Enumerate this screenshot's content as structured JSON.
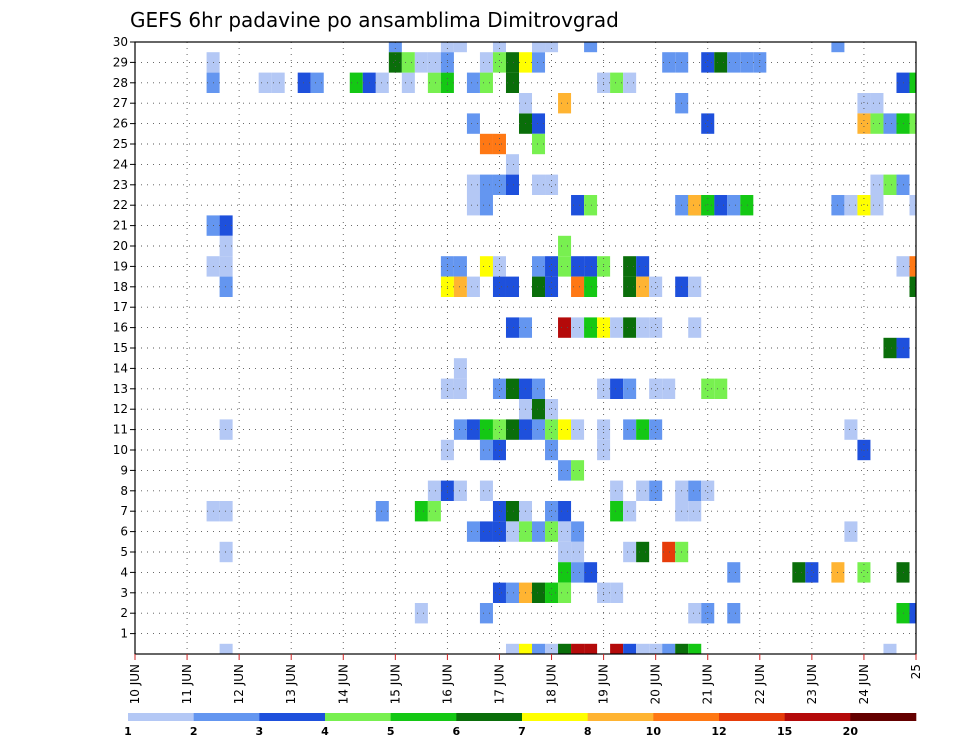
{
  "chart_data": {
    "type": "heatmap",
    "title": "GEFS 6hr padavine po ansamblima Dimitrovgrad",
    "y_ticks": [
      "1",
      "2",
      "3",
      "4",
      "5",
      "6",
      "7",
      "8",
      "9",
      "10",
      "11",
      "12",
      "13",
      "14",
      "15",
      "16",
      "17",
      "18",
      "19",
      "20",
      "21",
      "22",
      "23",
      "24",
      "25",
      "26",
      "27",
      "28",
      "29",
      "30"
    ],
    "x_ticks": [
      "10 JUN",
      "11 JUN",
      "12 JUN",
      "13 JUN",
      "14 JUN",
      "15 JUN",
      "16 JUN",
      "17 JUN",
      "18 JUN",
      "19 JUN",
      "20 JUN",
      "21 JUN",
      "22 JUN",
      "23 JUN",
      "24 JUN",
      "25"
    ],
    "x_range": [
      0,
      60
    ],
    "y_range": [
      0,
      30
    ],
    "grid": true,
    "colorbar": {
      "labels": [
        "1",
        "2",
        "3",
        "4",
        "5",
        "6",
        "7",
        "8",
        "10",
        "12",
        "15",
        "20"
      ],
      "colors": [
        "#b4c8f5",
        "#6496f0",
        "#1e50dc",
        "#78f050",
        "#14c814",
        "#0a6e0a",
        "#ffff00",
        "#ffb432",
        "#ff7814",
        "#e63c0a",
        "#b40a0a",
        "#640000"
      ]
    },
    "cells": [
      [
        28,
        30,
        1
      ],
      [
        27,
        29,
        1
      ],
      [
        28,
        29,
        4
      ],
      [
        29,
        29,
        6
      ],
      [
        30,
        29,
        7
      ],
      [
        31,
        29,
        2
      ],
      [
        41,
        29,
        2
      ],
      [
        42,
        29,
        2
      ],
      [
        44,
        29,
        3
      ],
      [
        45,
        29,
        6
      ],
      [
        46,
        29,
        2
      ],
      [
        47,
        29,
        2
      ],
      [
        48,
        29,
        2
      ],
      [
        6,
        29,
        1
      ],
      [
        29,
        28,
        6
      ],
      [
        27,
        28,
        4
      ],
      [
        26,
        28,
        2
      ],
      [
        23,
        28,
        4
      ],
      [
        24,
        28,
        5
      ],
      [
        21,
        28,
        1
      ],
      [
        10,
        28,
        1
      ],
      [
        11,
        28,
        1
      ],
      [
        13,
        28,
        3
      ],
      [
        14,
        28,
        2
      ],
      [
        17,
        28,
        5
      ],
      [
        18,
        28,
        3
      ],
      [
        19,
        28,
        1
      ],
      [
        36,
        28,
        1
      ],
      [
        6,
        28,
        2
      ],
      [
        59,
        28,
        3
      ],
      [
        60,
        28,
        5
      ],
      [
        54,
        30,
        2
      ],
      [
        37,
        28,
        4
      ],
      [
        38,
        28,
        1
      ],
      [
        35,
        30,
        2
      ],
      [
        20,
        30,
        2
      ],
      [
        24,
        30,
        1
      ],
      [
        25,
        30,
        1
      ],
      [
        20,
        29,
        6
      ],
      [
        21,
        29,
        4
      ],
      [
        22,
        29,
        1
      ],
      [
        23,
        29,
        1
      ],
      [
        24,
        29,
        2
      ],
      [
        31,
        30,
        1
      ],
      [
        32,
        30,
        1
      ],
      [
        30,
        26,
        6
      ],
      [
        31,
        26,
        3
      ],
      [
        31,
        25,
        4
      ],
      [
        27,
        25,
        9
      ],
      [
        28,
        25,
        9
      ],
      [
        29,
        24,
        1
      ],
      [
        26,
        26,
        2
      ],
      [
        30,
        27,
        1
      ],
      [
        33,
        27,
        8
      ],
      [
        42,
        27,
        2
      ],
      [
        56,
        27,
        1
      ],
      [
        57,
        27,
        1
      ],
      [
        44,
        26,
        3
      ],
      [
        56,
        26,
        8
      ],
      [
        57,
        26,
        4
      ],
      [
        58,
        26,
        2
      ],
      [
        59,
        26,
        5
      ],
      [
        60,
        26,
        4
      ],
      [
        26,
        23,
        1
      ],
      [
        27,
        23,
        2
      ],
      [
        28,
        23,
        2
      ],
      [
        29,
        23,
        3
      ],
      [
        31,
        23,
        1
      ],
      [
        32,
        23,
        1
      ],
      [
        57,
        23,
        1
      ],
      [
        58,
        23,
        4
      ],
      [
        59,
        23,
        2
      ],
      [
        26,
        22,
        1
      ],
      [
        27,
        22,
        2
      ],
      [
        34,
        22,
        3
      ],
      [
        35,
        22,
        4
      ],
      [
        42,
        22,
        2
      ],
      [
        43,
        22,
        5
      ],
      [
        44,
        22,
        3
      ],
      [
        45,
        22,
        3
      ],
      [
        46,
        22,
        2
      ],
      [
        47,
        22,
        5
      ],
      [
        43,
        22,
        8
      ],
      [
        44,
        22,
        5
      ],
      [
        54,
        22,
        2
      ],
      [
        55,
        22,
        1
      ],
      [
        56,
        22,
        7
      ],
      [
        57,
        22,
        1
      ],
      [
        60,
        22,
        1
      ],
      [
        6,
        21,
        2
      ],
      [
        7,
        21,
        3
      ],
      [
        7,
        20,
        1
      ],
      [
        33,
        20,
        4
      ],
      [
        6,
        19,
        1
      ],
      [
        7,
        19,
        1
      ],
      [
        24,
        19,
        2
      ],
      [
        25,
        19,
        2
      ],
      [
        27,
        19,
        7
      ],
      [
        28,
        19,
        1
      ],
      [
        31,
        19,
        2
      ],
      [
        32,
        19,
        3
      ],
      [
        33,
        19,
        4
      ],
      [
        34,
        19,
        3
      ],
      [
        35,
        19,
        3
      ],
      [
        36,
        19,
        4
      ],
      [
        38,
        19,
        6
      ],
      [
        39,
        19,
        3
      ],
      [
        59,
        19,
        1
      ],
      [
        60,
        19,
        9
      ],
      [
        7,
        18,
        2
      ],
      [
        24,
        18,
        7
      ],
      [
        25,
        18,
        8
      ],
      [
        26,
        18,
        1
      ],
      [
        28,
        18,
        3
      ],
      [
        29,
        18,
        3
      ],
      [
        31,
        18,
        6
      ],
      [
        32,
        18,
        3
      ],
      [
        34,
        18,
        9
      ],
      [
        35,
        18,
        5
      ],
      [
        38,
        18,
        6
      ],
      [
        39,
        18,
        8
      ],
      [
        40,
        18,
        1
      ],
      [
        42,
        18,
        3
      ],
      [
        43,
        18,
        1
      ],
      [
        60,
        18,
        6
      ],
      [
        29,
        16,
        3
      ],
      [
        30,
        16,
        2
      ],
      [
        33,
        16,
        11
      ],
      [
        34,
        16,
        1
      ],
      [
        35,
        16,
        5
      ],
      [
        36,
        16,
        7
      ],
      [
        37,
        16,
        1
      ],
      [
        38,
        16,
        6
      ],
      [
        39,
        16,
        1
      ],
      [
        40,
        16,
        1
      ],
      [
        43,
        16,
        1
      ],
      [
        58,
        15,
        6
      ],
      [
        59,
        15,
        3
      ],
      [
        25,
        14,
        1
      ],
      [
        24,
        13,
        1
      ],
      [
        25,
        13,
        1
      ],
      [
        28,
        13,
        2
      ],
      [
        29,
        13,
        6
      ],
      [
        30,
        13,
        3
      ],
      [
        31,
        13,
        2
      ],
      [
        36,
        13,
        1
      ],
      [
        37,
        13,
        3
      ],
      [
        38,
        13,
        2
      ],
      [
        40,
        13,
        1
      ],
      [
        41,
        13,
        1
      ],
      [
        44,
        13,
        4
      ],
      [
        45,
        13,
        4
      ],
      [
        30,
        12,
        1
      ],
      [
        31,
        12,
        6
      ],
      [
        32,
        12,
        1
      ],
      [
        7,
        11,
        1
      ],
      [
        25,
        11,
        2
      ],
      [
        26,
        11,
        3
      ],
      [
        27,
        11,
        5
      ],
      [
        28,
        11,
        4
      ],
      [
        29,
        11,
        6
      ],
      [
        30,
        11,
        3
      ],
      [
        31,
        11,
        2
      ],
      [
        32,
        11,
        4
      ],
      [
        33,
        11,
        7
      ],
      [
        34,
        11,
        1
      ],
      [
        36,
        11,
        1
      ],
      [
        38,
        11,
        2
      ],
      [
        39,
        11,
        5
      ],
      [
        40,
        11,
        2
      ],
      [
        55,
        11,
        1
      ],
      [
        24,
        10,
        1
      ],
      [
        27,
        10,
        2
      ],
      [
        28,
        10,
        3
      ],
      [
        32,
        10,
        2
      ],
      [
        36,
        10,
        1
      ],
      [
        56,
        10,
        3
      ],
      [
        33,
        9,
        2
      ],
      [
        34,
        9,
        4
      ],
      [
        23,
        8,
        1
      ],
      [
        24,
        8,
        3
      ],
      [
        25,
        8,
        1
      ],
      [
        27,
        8,
        1
      ],
      [
        37,
        8,
        1
      ],
      [
        39,
        8,
        1
      ],
      [
        40,
        8,
        2
      ],
      [
        42,
        8,
        1
      ],
      [
        43,
        8,
        2
      ],
      [
        44,
        8,
        1
      ],
      [
        6,
        7,
        1
      ],
      [
        7,
        7,
        1
      ],
      [
        19,
        7,
        2
      ],
      [
        22,
        7,
        5
      ],
      [
        23,
        7,
        4
      ],
      [
        28,
        7,
        3
      ],
      [
        29,
        7,
        6
      ],
      [
        30,
        7,
        1
      ],
      [
        32,
        7,
        2
      ],
      [
        33,
        7,
        3
      ],
      [
        37,
        7,
        5
      ],
      [
        38,
        7,
        1
      ],
      [
        42,
        7,
        1
      ],
      [
        43,
        7,
        1
      ],
      [
        26,
        6,
        2
      ],
      [
        27,
        6,
        3
      ],
      [
        28,
        6,
        3
      ],
      [
        29,
        6,
        1
      ],
      [
        30,
        6,
        4
      ],
      [
        31,
        6,
        2
      ],
      [
        32,
        6,
        4
      ],
      [
        33,
        6,
        1
      ],
      [
        34,
        6,
        2
      ],
      [
        55,
        6,
        1
      ],
      [
        7,
        5,
        1
      ],
      [
        33,
        5,
        1
      ],
      [
        34,
        5,
        1
      ],
      [
        38,
        5,
        1
      ],
      [
        39,
        5,
        6
      ],
      [
        41,
        5,
        10
      ],
      [
        42,
        5,
        4
      ],
      [
        33,
        4,
        5
      ],
      [
        34,
        4,
        2
      ],
      [
        35,
        4,
        3
      ],
      [
        46,
        4,
        2
      ],
      [
        51,
        4,
        6
      ],
      [
        52,
        4,
        3
      ],
      [
        54,
        4,
        8
      ],
      [
        56,
        4,
        4
      ],
      [
        59,
        4,
        6
      ],
      [
        28,
        3,
        3
      ],
      [
        29,
        3,
        2
      ],
      [
        30,
        3,
        8
      ],
      [
        31,
        3,
        6
      ],
      [
        32,
        3,
        5
      ],
      [
        33,
        3,
        4
      ],
      [
        36,
        3,
        1
      ],
      [
        37,
        3,
        1
      ],
      [
        22,
        2,
        1
      ],
      [
        27,
        2,
        2
      ],
      [
        43,
        2,
        1
      ],
      [
        44,
        2,
        2
      ],
      [
        46,
        2,
        2
      ],
      [
        59,
        2,
        5
      ],
      [
        60,
        2,
        3
      ],
      [
        7,
        0,
        1
      ],
      [
        29,
        0,
        1
      ],
      [
        30,
        0,
        7
      ],
      [
        31,
        0,
        2
      ],
      [
        32,
        0,
        1
      ],
      [
        33,
        0,
        6
      ],
      [
        34,
        0,
        11
      ],
      [
        35,
        0,
        11
      ],
      [
        37,
        0,
        11
      ],
      [
        38,
        0,
        3
      ],
      [
        39,
        0,
        1
      ],
      [
        40,
        0,
        1
      ],
      [
        41,
        0,
        2
      ],
      [
        42,
        0,
        6
      ],
      [
        43,
        0,
        5
      ],
      [
        58,
        0,
        1
      ]
    ]
  }
}
